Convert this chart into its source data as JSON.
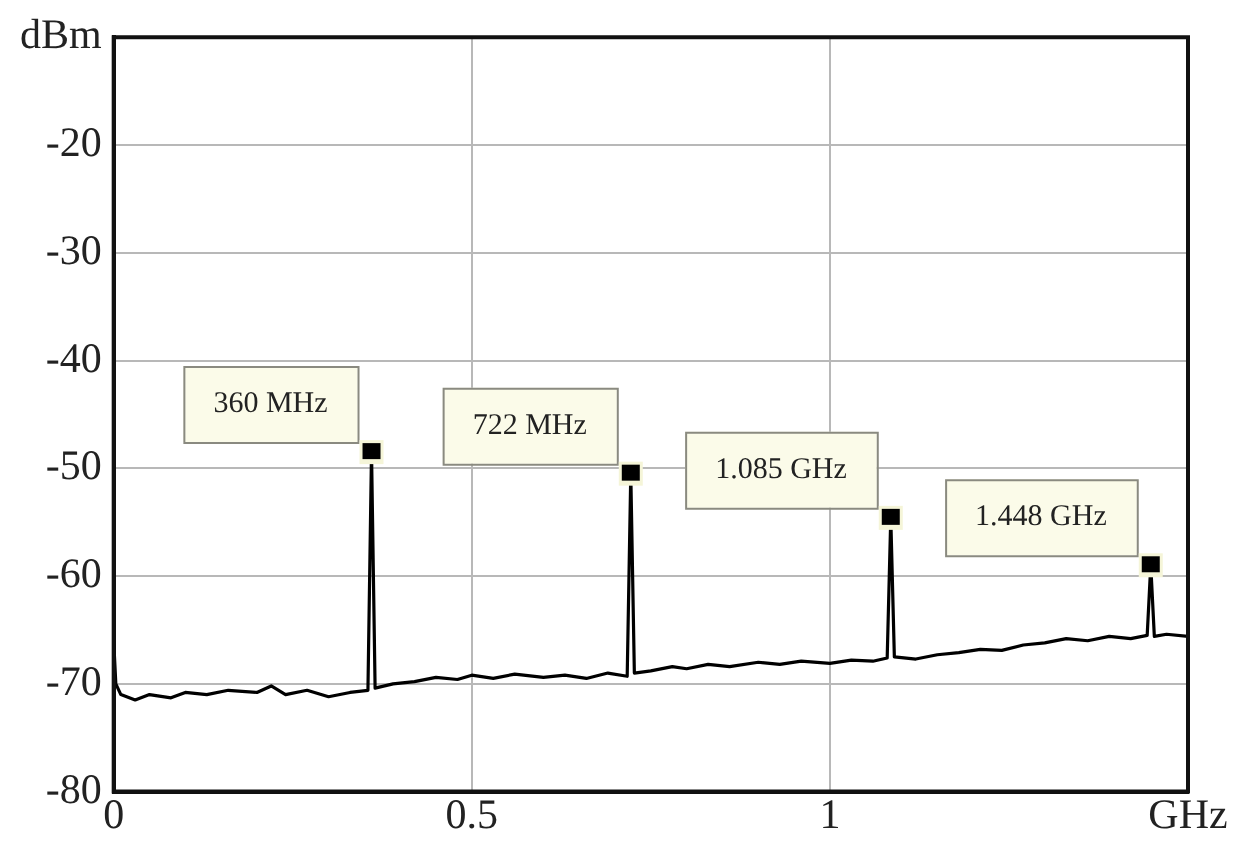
{
  "chart_data": {
    "type": "line",
    "x": [
      0,
      0.003,
      0.01,
      0.03,
      0.05,
      0.08,
      0.1,
      0.13,
      0.16,
      0.2,
      0.22,
      0.24,
      0.27,
      0.3,
      0.33,
      0.355,
      0.36,
      0.365,
      0.39,
      0.42,
      0.45,
      0.48,
      0.5,
      0.53,
      0.56,
      0.6,
      0.63,
      0.66,
      0.69,
      0.717,
      0.722,
      0.727,
      0.75,
      0.78,
      0.8,
      0.83,
      0.86,
      0.9,
      0.93,
      0.96,
      1.0,
      1.03,
      1.06,
      1.08,
      1.085,
      1.09,
      1.12,
      1.15,
      1.18,
      1.21,
      1.24,
      1.27,
      1.3,
      1.33,
      1.36,
      1.39,
      1.42,
      1.443,
      1.448,
      1.453,
      1.47,
      1.5
    ],
    "series": [
      {
        "color": "#000000",
        "values": [
          -66,
          -70,
          -71,
          -71.5,
          -71,
          -71.3,
          -70.8,
          -71,
          -70.6,
          -70.8,
          -70.2,
          -71,
          -70.6,
          -71.2,
          -70.8,
          -70.6,
          -48.5,
          -70.4,
          -70,
          -69.8,
          -69.4,
          -69.6,
          -69.2,
          -69.5,
          -69.1,
          -69.4,
          -69.2,
          -69.5,
          -69,
          -69.3,
          -50.5,
          -69,
          -68.8,
          -68.4,
          -68.6,
          -68.2,
          -68.4,
          -68,
          -68.2,
          -67.9,
          -68.1,
          -67.8,
          -67.9,
          -67.6,
          -54.6,
          -67.5,
          -67.7,
          -67.3,
          -67.1,
          -66.8,
          -66.9,
          -66.4,
          -66.2,
          -65.8,
          -66,
          -65.6,
          -65.8,
          -65.5,
          -59,
          -65.6,
          -65.4,
          -65.6
        ]
      }
    ],
    "xlim": [
      0,
      1.5
    ],
    "xticks": [
      0,
      0.5,
      1,
      {
        "value": 1.5,
        "label": "GHz"
      }
    ],
    "ylim": [
      -80,
      -10
    ],
    "yticks": [
      {
        "value": -10,
        "label": "dBm"
      },
      -20,
      -30,
      -40,
      -50,
      -60,
      -70,
      -80
    ],
    "grid": true,
    "legend": false,
    "marker": "none",
    "line_style": "solid",
    "annotations": [
      {
        "text": "360 MHz",
        "x": 0.36,
        "y": -48.5
      },
      {
        "text": "722 MHz",
        "x": 0.722,
        "y": -50.5
      },
      {
        "text": "1.085 GHz",
        "x": 1.085,
        "y": -54.6
      },
      {
        "text": "1.448 GHz",
        "x": 1.448,
        "y": -59
      }
    ]
  }
}
